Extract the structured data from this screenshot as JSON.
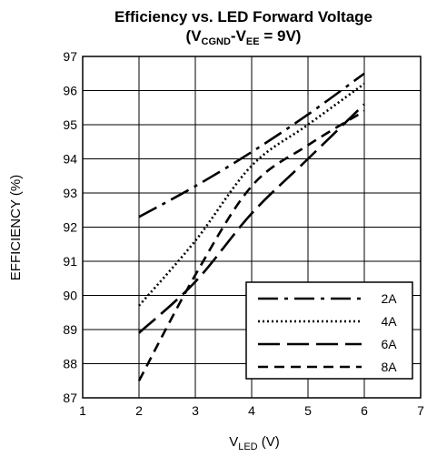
{
  "chart_data": {
    "type": "line",
    "title": {
      "line1": "Efficiency vs. LED Forward Voltage",
      "open": "(V",
      "sub1": "CGND",
      "dash": "-V",
      "sub2": "EE",
      "close": " = 9V)"
    },
    "xlabel": {
      "main": "V",
      "sub": "LED",
      "suffix": " (V)"
    },
    "ylabel": "EFFICIENCY (%)",
    "xlim": [
      1,
      7
    ],
    "ylim": [
      87,
      97
    ],
    "xticks": [
      "1",
      "2",
      "3",
      "4",
      "5",
      "6",
      "7"
    ],
    "yticks": [
      "87",
      "88",
      "89",
      "90",
      "91",
      "92",
      "93",
      "94",
      "95",
      "96",
      "97"
    ],
    "grid": true,
    "legend_position": "bottom-right",
    "series": [
      {
        "name": "2A",
        "dash": "dash-dot",
        "x": [
          2,
          3,
          4,
          5,
          6
        ],
        "y": [
          92.3,
          93.2,
          94.2,
          95.3,
          96.5
        ]
      },
      {
        "name": "4A",
        "dash": "dotted",
        "x": [
          2,
          3,
          4,
          5,
          6
        ],
        "y": [
          89.7,
          91.6,
          93.8,
          95.0,
          96.2
        ]
      },
      {
        "name": "6A",
        "dash": "long-dash",
        "x": [
          2,
          3,
          4,
          5,
          6
        ],
        "y": [
          88.9,
          90.4,
          92.4,
          94.0,
          95.6
        ]
      },
      {
        "name": "8A",
        "dash": "dash",
        "x": [
          2,
          3,
          4,
          5,
          6
        ],
        "y": [
          87.5,
          90.6,
          93.2,
          94.4,
          95.4
        ]
      }
    ]
  }
}
